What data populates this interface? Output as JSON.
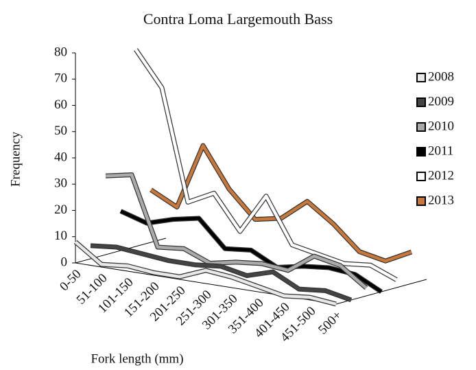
{
  "chart_data": {
    "type": "line3d",
    "title": "Contra Loma Largemouth Bass",
    "x_label": "Fork length (mm)",
    "y_label": "Frequency",
    "categories": [
      "0-50",
      "51-100",
      "101-150",
      "151-200",
      "201-250",
      "251-300",
      "301-350",
      "351-400",
      "401-450",
      "451-500",
      "500+"
    ],
    "ylim": [
      0,
      80
    ],
    "yticks": [
      0,
      10,
      20,
      30,
      40,
      50,
      60,
      70,
      80
    ],
    "series": [
      {
        "name": "2008",
        "color": "#e8e8e8",
        "values": [
          8,
          1,
          2,
          1,
          1,
          5,
          4,
          2,
          0,
          1,
          0
        ]
      },
      {
        "name": "2009",
        "color": "#444444",
        "values": [
          5,
          6,
          5,
          4,
          4,
          5,
          3,
          6,
          1,
          2,
          0
        ]
      },
      {
        "name": "2010",
        "color": "#aaaaaa",
        "values": [
          30,
          32,
          6,
          7,
          3,
          5,
          6,
          5,
          12,
          10,
          3
        ]
      },
      {
        "name": "2011",
        "color": "#000000",
        "values": [
          15,
          12,
          15,
          17,
          7,
          8,
          3,
          5,
          6,
          5,
          0
        ]
      },
      {
        "name": "2012",
        "color": "#ffffff",
        "values": [
          75,
          62,
          20,
          25,
          12,
          27,
          10,
          8,
          6,
          7,
          3
        ]
      },
      {
        "name": "2013",
        "color": "#c8783a",
        "values": [
          20,
          15,
          40,
          25,
          15,
          17,
          25,
          18,
          9,
          7,
          12
        ]
      }
    ]
  }
}
